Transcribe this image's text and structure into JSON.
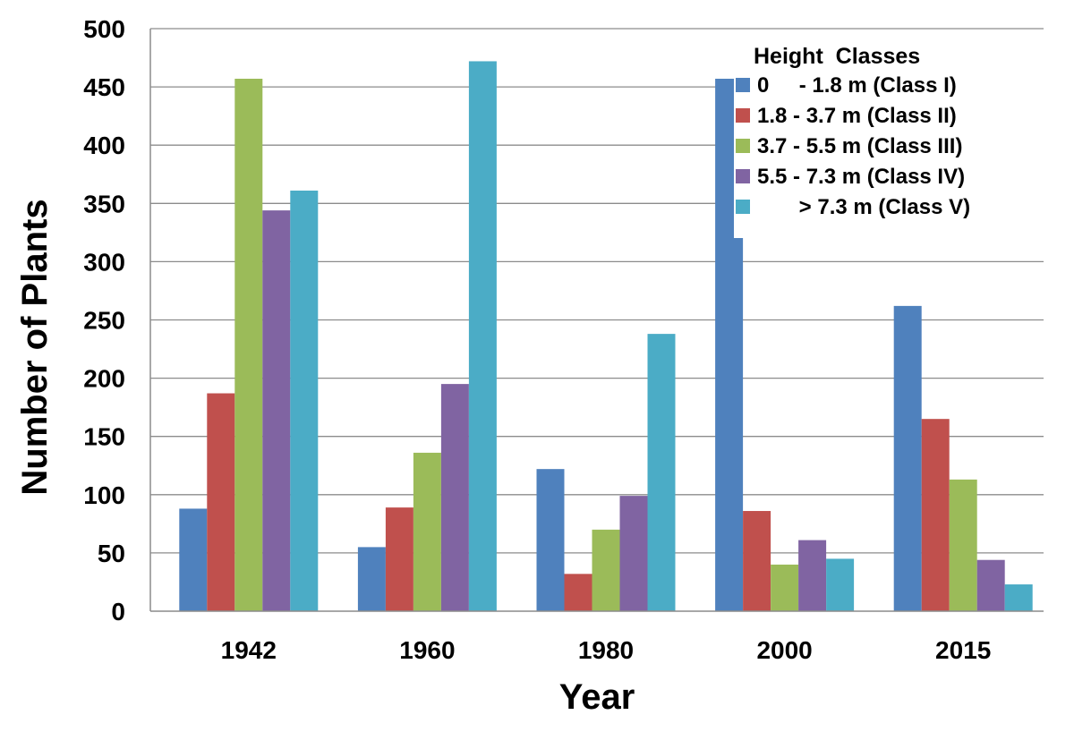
{
  "chart_data": {
    "type": "bar",
    "categories": [
      "1942",
      "1960",
      "1980",
      "2000",
      "2015"
    ],
    "xlabel": "Year",
    "ylabel": "Number of Plants",
    "ylim": [
      0,
      500
    ],
    "yticks": [
      0,
      50,
      100,
      150,
      200,
      250,
      300,
      350,
      400,
      450,
      500
    ],
    "grid": true,
    "legend": {
      "title": "Height  Classes",
      "placement": "top-right"
    },
    "series": [
      {
        "name": "0     - 1.8 m (Class I)",
        "color": "#4F81BD",
        "values": [
          88,
          55,
          122,
          457,
          262
        ]
      },
      {
        "name": "1.8 - 3.7 m (Class II)",
        "color": "#C0504D",
        "values": [
          187,
          89,
          32,
          86,
          165
        ]
      },
      {
        "name": "3.7 - 5.5 m (Class III)",
        "color": "#9BBB59",
        "values": [
          457,
          136,
          70,
          40,
          113
        ]
      },
      {
        "name": "5.5 - 7.3 m (Class IV)",
        "color": "#8064A2",
        "values": [
          344,
          195,
          99,
          61,
          44
        ]
      },
      {
        "name": "       > 7.3 m (Class V)",
        "color": "#4BACC6",
        "values": [
          361,
          472,
          238,
          45,
          23
        ]
      }
    ]
  }
}
